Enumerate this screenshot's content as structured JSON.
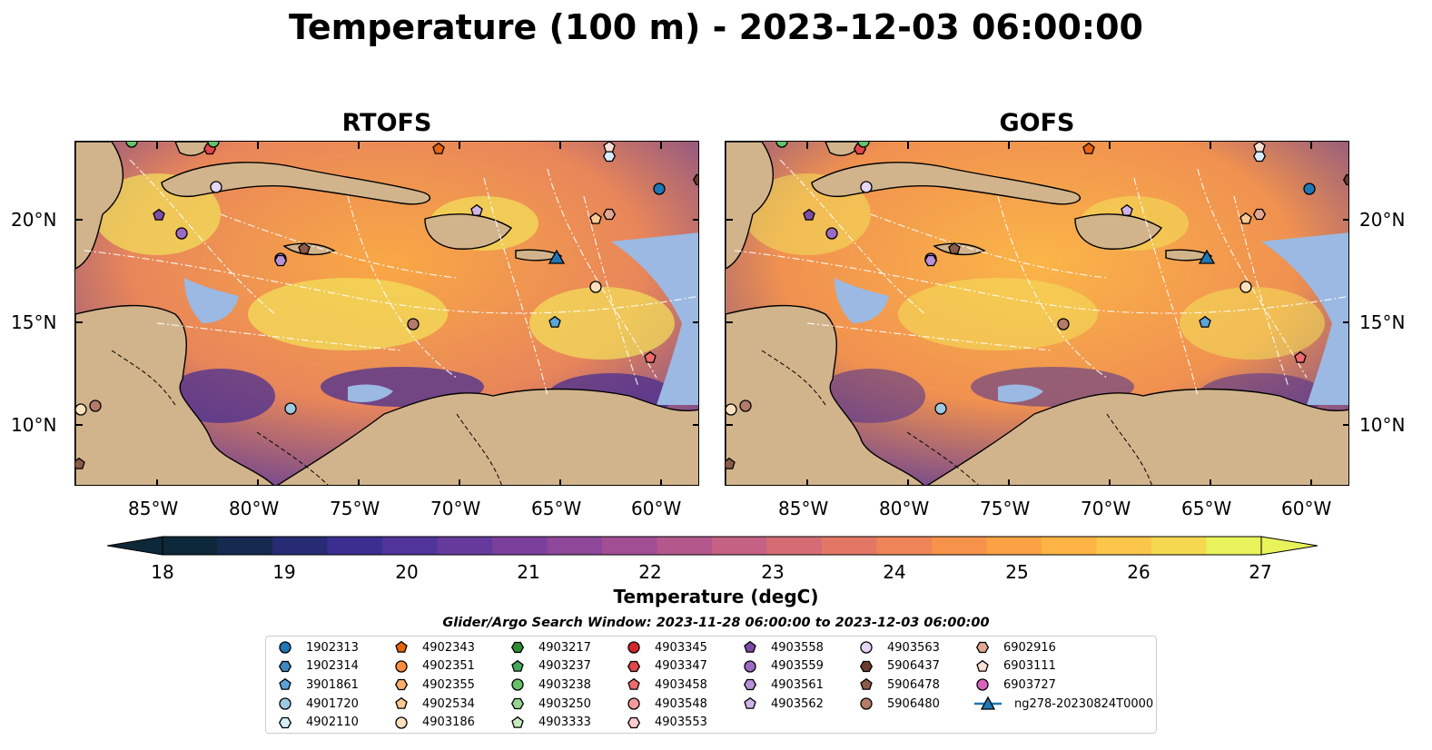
{
  "title": "Temperature (100 m) - 2023-12-03 06:00:00",
  "panels": [
    {
      "title": "RTOFS"
    },
    {
      "title": "GOFS"
    }
  ],
  "axes": {
    "lon_labels": [
      "85°W",
      "80°W",
      "75°W",
      "70°W",
      "65°W",
      "60°W"
    ],
    "lat_labels": [
      "20°N",
      "15°N",
      "10°N"
    ]
  },
  "colorbar": {
    "label": "Temperature (degC)",
    "ticks": [
      "18",
      "19",
      "20",
      "21",
      "22",
      "23",
      "24",
      "25",
      "26",
      "27"
    ],
    "colors": [
      "#0d2838",
      "#16294e",
      "#262b73",
      "#3a2f90",
      "#50349a",
      "#653a9d",
      "#7a409c",
      "#8e4799",
      "#a14e94",
      "#b4578c",
      "#c56182",
      "#d56b74",
      "#e27765",
      "#ee8457",
      "#f7924a",
      "#fca244",
      "#fdb444",
      "#fbc64a",
      "#f5d84f",
      "#e8f25a"
    ]
  },
  "search_window": "Glider/Argo Search Window: 2023-11-28 06:00:00 to 2023-12-03 06:00:00",
  "legend": [
    {
      "label": "1902313",
      "color": "#1f77b4",
      "marker": "circle"
    },
    {
      "label": "1902314",
      "color": "#3f88c0",
      "marker": "hexagon"
    },
    {
      "label": "3901861",
      "color": "#5ba3d8",
      "marker": "pentagon"
    },
    {
      "label": "4901720",
      "color": "#9ecae1",
      "marker": "circle"
    },
    {
      "label": "4902110",
      "color": "#d6ecf8",
      "marker": "hexagon"
    },
    {
      "label": "4902343",
      "color": "#e6640e",
      "marker": "pentagon"
    },
    {
      "label": "4902351",
      "color": "#fd8d3c",
      "marker": "circle"
    },
    {
      "label": "4902355",
      "color": "#fdae6b",
      "marker": "hexagon"
    },
    {
      "label": "4902534",
      "color": "#fdc892",
      "marker": "pentagon"
    },
    {
      "label": "4903186",
      "color": "#fee0bd",
      "marker": "circle"
    },
    {
      "label": "4903217",
      "color": "#2e8b34",
      "marker": "hexagon"
    },
    {
      "label": "4903237",
      "color": "#41ab5d",
      "marker": "pentagon"
    },
    {
      "label": "4903238",
      "color": "#66c26a",
      "marker": "circle"
    },
    {
      "label": "4903250",
      "color": "#98d594",
      "marker": "hexagon"
    },
    {
      "label": "4903333",
      "color": "#c7e9c0",
      "marker": "pentagon"
    },
    {
      "label": "4903345",
      "color": "#d62728",
      "marker": "circle"
    },
    {
      "label": "4903347",
      "color": "#e0464a",
      "marker": "hexagon"
    },
    {
      "label": "4903458",
      "color": "#ef6a6a",
      "marker": "pentagon"
    },
    {
      "label": "4903548",
      "color": "#f49a9a",
      "marker": "circle"
    },
    {
      "label": "4903553",
      "color": "#fbcaca",
      "marker": "hexagon"
    },
    {
      "label": "4903558",
      "color": "#7d4ca6",
      "marker": "pentagon"
    },
    {
      "label": "4903559",
      "color": "#9b6bc3",
      "marker": "circle"
    },
    {
      "label": "4903561",
      "color": "#b892d6",
      "marker": "hexagon"
    },
    {
      "label": "4903562",
      "color": "#d0b4e8",
      "marker": "pentagon"
    },
    {
      "label": "4903563",
      "color": "#e6d6f5",
      "marker": "circle"
    },
    {
      "label": "5906437",
      "color": "#6b3d2e",
      "marker": "hexagon"
    },
    {
      "label": "5906478",
      "color": "#8c5a48",
      "marker": "pentagon"
    },
    {
      "label": "5906480",
      "color": "#b57b6a",
      "marker": "circle"
    },
    {
      "label": "6902916",
      "color": "#e3a891",
      "marker": "hexagon"
    },
    {
      "label": "6903111",
      "color": "#fbe0d6",
      "marker": "pentagon"
    },
    {
      "label": "6903727",
      "color": "#d864c0",
      "marker": "circle"
    },
    {
      "label": "ng278-20230824T0000",
      "color": "#1f77b4",
      "marker": "triangle-line"
    }
  ],
  "colors": {
    "land": "#d2b48c",
    "shallow_water": "#9bb9e2",
    "warm_water": "#f7a34a",
    "cool_water": "#5a3a9a"
  }
}
